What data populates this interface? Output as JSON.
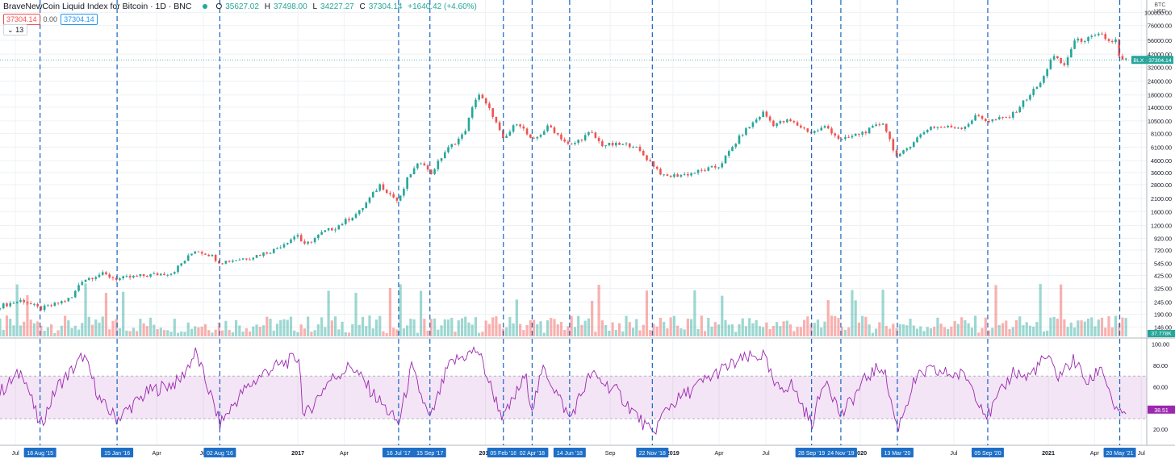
{
  "header": {
    "title": "BraveNewCoin Liquid Index for Bitcoin · 1D · BNC",
    "o_label": "O",
    "o_value": "35627.02",
    "h_label": "H",
    "h_value": "37498.00",
    "l_label": "L",
    "l_value": "34227.27",
    "c_label": "C",
    "c_value": "37304.14",
    "change": "+1640.42 (+4.60%)",
    "sell_price": "37304.14",
    "spread": "0.00",
    "buy_price": "37304.14",
    "indicator_toggle": "13"
  },
  "axis_unit": [
    "BTC",
    "USD"
  ],
  "colors": {
    "up": "#26a69a",
    "down": "#ef5350",
    "event_line": "#1565c0",
    "rsi": "#9c27b0",
    "rsi_band": "rgba(156,39,176,0.12)",
    "event_tag_bg": "#1e6fc7"
  },
  "chart_data": [
    {
      "type": "line",
      "name": "price",
      "y_scale": "log",
      "y_ticks": [
        "100000.00",
        "76000.00",
        "56000.00",
        "42000.00",
        "32000.00",
        "24000.00",
        "18000.00",
        "14000.00",
        "10500.00",
        "8100.00",
        "6100.00",
        "4600.00",
        "3600.00",
        "2800.00",
        "2100.00",
        "1600.00",
        "1200.00",
        "920.00",
        "720.00",
        "545.00",
        "425.00",
        "325.00",
        "245.00",
        "190.00",
        "146.00"
      ],
      "last_label": "BLX",
      "last_value": "37304.14",
      "volume_label": "37.778K",
      "x": [
        "2015-06-01",
        "2015-07-15",
        "2015-08-18",
        "2015-09-15",
        "2015-10-20",
        "2015-11-05",
        "2015-12-15",
        "2016-01-15",
        "2016-03-01",
        "2016-05-01",
        "2016-06-15",
        "2016-07-15",
        "2016-08-02",
        "2016-10-01",
        "2016-11-15",
        "2017-01-01",
        "2017-01-12",
        "2017-02-20",
        "2017-03-15",
        "2017-05-01",
        "2017-06-10",
        "2017-07-16",
        "2017-08-05",
        "2017-09-01",
        "2017-09-15",
        "2017-10-15",
        "2017-11-20",
        "2017-12-17",
        "2018-01-15",
        "2018-02-05",
        "2018-03-05",
        "2018-04-02",
        "2018-05-05",
        "2018-06-14",
        "2018-07-25",
        "2018-08-15",
        "2018-10-15",
        "2018-11-22",
        "2018-12-15",
        "2019-02-01",
        "2019-04-01",
        "2019-05-15",
        "2019-06-26",
        "2019-07-15",
        "2019-08-15",
        "2019-09-28",
        "2019-10-26",
        "2019-11-24",
        "2020-01-15",
        "2020-02-14",
        "2020-03-13",
        "2020-04-15",
        "2020-05-15",
        "2020-07-20",
        "2020-08-15",
        "2020-09-05",
        "2020-10-20",
        "2020-11-25",
        "2020-12-20",
        "2021-01-08",
        "2021-02-01",
        "2021-02-20",
        "2021-03-15",
        "2021-04-14",
        "2021-04-30",
        "2021-05-12",
        "2021-05-20",
        "2021-06-01"
      ],
      "values": [
        225,
        255,
        212,
        232,
        270,
        380,
        440,
        395,
        420,
        450,
        720,
        650,
        560,
        620,
        720,
        1000,
        780,
        1050,
        1150,
        1600,
        2800,
        1950,
        3400,
        4700,
        3400,
        5600,
        8000,
        19000,
        12000,
        7000,
        10500,
        6800,
        9500,
        6200,
        8300,
        6400,
        6400,
        4300,
        3300,
        3500,
        4100,
        8000,
        12500,
        9800,
        10600,
        8200,
        9400,
        7000,
        8600,
        10200,
        4800,
        7000,
        9300,
        9200,
        11800,
        10500,
        11500,
        18000,
        24000,
        41000,
        33000,
        55000,
        57000,
        63000,
        54000,
        56000,
        37000,
        37304
      ]
    },
    {
      "type": "line",
      "name": "RSI",
      "y_ticks": [
        "100.00",
        "80.00",
        "60.00",
        "40.00",
        "20.00"
      ],
      "band": [
        30,
        70
      ],
      "last_value": "38.51",
      "x": [
        "2015-06-01",
        "2015-07-15",
        "2015-08-18",
        "2015-09-20",
        "2015-10-28",
        "2015-11-10",
        "2015-12-15",
        "2016-01-15",
        "2016-03-15",
        "2016-05-15",
        "2016-06-16",
        "2016-07-20",
        "2016-08-02",
        "2016-09-15",
        "2016-11-01",
        "2017-01-03",
        "2017-01-12",
        "2017-03-01",
        "2017-04-15",
        "2017-05-25",
        "2017-07-16",
        "2017-08-10",
        "2017-09-15",
        "2017-10-20",
        "2017-11-05",
        "2017-12-17",
        "2018-01-15",
        "2018-02-05",
        "2018-03-20",
        "2018-04-02",
        "2018-04-25",
        "2018-06-14",
        "2018-07-25",
        "2018-09-15",
        "2018-11-22",
        "2018-12-20",
        "2019-02-15",
        "2019-04-03",
        "2019-05-15",
        "2019-06-26",
        "2019-07-20",
        "2019-08-20",
        "2019-09-28",
        "2019-10-26",
        "2019-11-24",
        "2020-01-15",
        "2020-02-14",
        "2020-03-13",
        "2020-04-15",
        "2020-05-10",
        "2020-07-25",
        "2020-09-05",
        "2020-10-25",
        "2020-11-20",
        "2020-12-28",
        "2021-01-20",
        "2021-02-20",
        "2021-03-20",
        "2021-04-14",
        "2021-05-12",
        "2021-05-20",
        "2021-06-01"
      ],
      "values": [
        55,
        75,
        22,
        60,
        80,
        90,
        45,
        30,
        55,
        65,
        92,
        45,
        25,
        55,
        75,
        88,
        30,
        65,
        80,
        55,
        25,
        78,
        28,
        78,
        85,
        95,
        55,
        30,
        70,
        40,
        78,
        30,
        72,
        55,
        15,
        40,
        60,
        75,
        85,
        90,
        58,
        62,
        25,
        70,
        32,
        70,
        80,
        20,
        65,
        75,
        70,
        32,
        75,
        68,
        88,
        70,
        85,
        62,
        80,
        38,
        32,
        38
      ]
    }
  ],
  "x_axis_labels": [
    {
      "date": "2015-07-01",
      "text": "Jul"
    },
    {
      "date": "2016-04-01",
      "text": "Apr"
    },
    {
      "date": "2016-07-01",
      "text": "Jul"
    },
    {
      "date": "2017-01-01",
      "text": "2017"
    },
    {
      "date": "2017-04-01",
      "text": "Apr"
    },
    {
      "date": "2018-01-01",
      "text": "2018"
    },
    {
      "date": "2018-09-01",
      "text": "Sep"
    },
    {
      "date": "2019-01-01",
      "text": "2019"
    },
    {
      "date": "2019-04-01",
      "text": "Apr"
    },
    {
      "date": "2019-07-01",
      "text": "Jul"
    },
    {
      "date": "2020-01-01",
      "text": "2020"
    },
    {
      "date": "2020-07-01",
      "text": "Jul"
    },
    {
      "date": "2021-01-01",
      "text": "2021"
    },
    {
      "date": "2021-04-01",
      "text": "Apr"
    },
    {
      "date": "2021-07-01",
      "text": "Jul"
    }
  ],
  "events": [
    {
      "date": "2015-08-18",
      "label": "18 Aug '15"
    },
    {
      "date": "2016-01-15",
      "label": "15 Jan '16"
    },
    {
      "date": "2016-08-02",
      "label": "02 Aug '16"
    },
    {
      "date": "2017-07-16",
      "label": "16 Jul '17"
    },
    {
      "date": "2017-09-15",
      "label": "15 Sep '17"
    },
    {
      "date": "2018-02-05",
      "label": "05 Feb '18"
    },
    {
      "date": "2018-04-02",
      "label": "02 Apr '18"
    },
    {
      "date": "2018-06-14",
      "label": "14 Jun '18"
    },
    {
      "date": "2018-11-22",
      "label": "22 Nov '18"
    },
    {
      "date": "2019-09-28",
      "label": "28 Sep '19"
    },
    {
      "date": "2019-11-24",
      "label": "24 Nov '19"
    },
    {
      "date": "2020-03-13",
      "label": "13 Mar '20"
    },
    {
      "date": "2020-09-05",
      "label": "05 Sep '20"
    },
    {
      "date": "2021-05-20",
      "label": "20 May '21"
    }
  ]
}
